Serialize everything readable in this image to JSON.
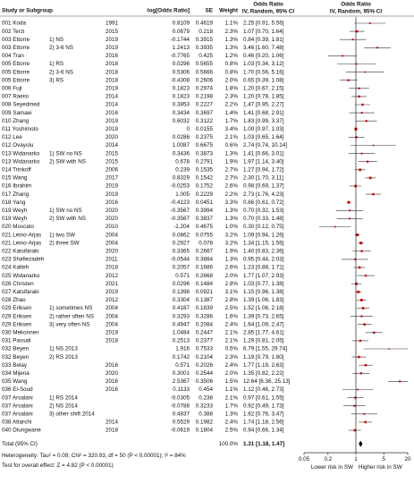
{
  "chart_data": {
    "type": "forest",
    "headers": {
      "study": "Study or Subgroup",
      "logor": "log[Odds Ratio]",
      "se": "SE",
      "weight": "Weight",
      "or_title": "Odds Ratio",
      "or_sub": "IV, Random, 95% CI",
      "plot_title": "Odds Ratio",
      "plot_sub": "IV, Random, 95% CI"
    },
    "rows": [
      {
        "study": "001 Koda",
        "year": 1991,
        "logor": 0.8109,
        "se": 0.4619,
        "weight": "1.1%",
        "ci": "2.25 [0.91, 5.56]",
        "or": 2.25,
        "lo": 0.91,
        "hi": 5.56
      },
      {
        "study": "002 Terzi",
        "year": 2015,
        "logor": 0.0679,
        "se": 0.218,
        "weight": "2.3%",
        "ci": "1.07 [0.70, 1.64]",
        "or": 1.07,
        "lo": 0.7,
        "hi": 1.64
      },
      {
        "study": "003 Ettorre",
        "subgroup": "1) NS",
        "year": 2019,
        "logor": -0.1744,
        "se": 0.3915,
        "weight": "1.3%",
        "ci": "0.84 [0.39, 1.81]",
        "or": 0.84,
        "lo": 0.39,
        "hi": 1.81
      },
      {
        "study": "003 Ettorre",
        "subgroup": "2) 3-6 NS",
        "year": 2019,
        "logor": 1.2413,
        "se": 0.3935,
        "weight": "1.3%",
        "ci": "3.46 [1.60, 7.48]",
        "or": 3.46,
        "lo": 1.6,
        "hi": 7.48
      },
      {
        "study": "004 Tran",
        "year": 2016,
        "logor": -0.7765,
        "se": 0.425,
        "weight": "1.2%",
        "ci": "0.46 [0.20, 1.06]",
        "or": 0.46,
        "lo": 0.2,
        "hi": 1.06
      },
      {
        "study": "005 Ettorre",
        "subgroup": "1) RS",
        "year": 2018,
        "logor": 0.0296,
        "se": 0.5655,
        "weight": "0.8%",
        "ci": "1.03 [0.34, 3.12]",
        "or": 1.03,
        "lo": 0.34,
        "hi": 3.12
      },
      {
        "study": "005 Ettorre",
        "subgroup": "2) 3-6 NS",
        "year": 2018,
        "logor": 0.5306,
        "se": 0.5666,
        "weight": "0.8%",
        "ci": "1.70 [0.56, 5.16]",
        "or": 1.7,
        "lo": 0.56,
        "hi": 5.16
      },
      {
        "study": "005 Ettorre",
        "subgroup": "3) RS",
        "year": 2018,
        "logor": -0.4308,
        "se": 0.2606,
        "weight": "2.0%",
        "ci": "0.65 [0.39, 1.08]",
        "or": 0.65,
        "lo": 0.39,
        "hi": 1.08
      },
      {
        "study": "006 Fuji",
        "year": 2019,
        "logor": 0.1823,
        "se": 0.2974,
        "weight": "1.8%",
        "ci": "1.20 [0.67, 2.15]",
        "or": 1.2,
        "lo": 0.67,
        "hi": 2.15
      },
      {
        "study": "007 Raeisi",
        "year": 2014,
        "logor": 0.1823,
        "se": 0.2198,
        "weight": "2.3%",
        "ci": "1.20 [0.78, 1.85]",
        "or": 1.2,
        "lo": 0.78,
        "hi": 1.85
      },
      {
        "study": "008 Seyedmed",
        "year": 2014,
        "logor": 0.3853,
        "se": 0.2227,
        "weight": "2.2%",
        "ci": "1.47 [0.95, 2.27]",
        "or": 1.47,
        "lo": 0.95,
        "hi": 2.27
      },
      {
        "study": "009 Samaei",
        "year": 2016,
        "logor": 0.3434,
        "se": 0.3697,
        "weight": "1.4%",
        "ci": "1.41 [0.68, 2.91]",
        "or": 1.41,
        "lo": 0.68,
        "hi": 2.91
      },
      {
        "study": "010 Zhang",
        "year": 2019,
        "logor": 0.6032,
        "se": 0.3122,
        "weight": "1.7%",
        "ci": "1.83 [0.99, 3.37]",
        "or": 1.83,
        "lo": 0.99,
        "hi": 3.37
      },
      {
        "study": "011 Yoshimoto",
        "year": 2019,
        "logor": 0,
        "se": 0.0155,
        "weight": "3.4%",
        "ci": "1.00 [0.97, 1.03]",
        "or": 1,
        "lo": 0.97,
        "hi": 1.03
      },
      {
        "study": "012 Lee",
        "year": 2020,
        "logor": 0.0286,
        "se": 0.2375,
        "weight": "2.1%",
        "ci": "1.03 [0.65, 1.64]",
        "or": 1.03,
        "lo": 0.65,
        "hi": 1.64
      },
      {
        "study": "012 Ovayolu",
        "year": 2014,
        "logor": 1.0087,
        "se": 0.6675,
        "weight": "0.6%",
        "ci": "2.74 [0.74, 10.14]",
        "or": 2.74,
        "lo": 0.74,
        "hi": 10.14
      },
      {
        "study": "013 Widanarko",
        "subgroup": "1) SW no NS",
        "year": 2015,
        "logor": 0.3436,
        "se": 0.3873,
        "weight": "1.3%",
        "ci": "1.41 [0.66, 3.01]",
        "or": 1.41,
        "lo": 0.66,
        "hi": 3.01
      },
      {
        "study": "013 Widanarko",
        "subgroup": "2) SW with NS",
        "year": 2015,
        "logor": 0.678,
        "se": 0.2791,
        "weight": "1.9%",
        "ci": "1.97 [1.14, 3.40]",
        "or": 1.97,
        "lo": 1.14,
        "hi": 3.4
      },
      {
        "study": "014 Trinkoff",
        "year": 2006,
        "logor": 0.239,
        "se": 0.1535,
        "weight": "2.7%",
        "ci": "1.27 [0.94, 1.72]",
        "or": 1.27,
        "lo": 0.94,
        "hi": 1.72
      },
      {
        "study": "015 Wang",
        "year": 2017,
        "logor": 0.8329,
        "se": 0.1542,
        "weight": "2.7%",
        "ci": "2.30 [1.70, 3.11]",
        "or": 2.3,
        "lo": 1.7,
        "hi": 3.11
      },
      {
        "study": "016 Ibrahim",
        "year": 2019,
        "logor": -0.0253,
        "se": 0.1752,
        "weight": "2.6%",
        "ci": "0.98 [0.69, 1.37]",
        "or": 0.98,
        "lo": 0.69,
        "hi": 1.37
      },
      {
        "study": "017 Zhang",
        "year": 2019,
        "logor": 1.005,
        "se": 0.2229,
        "weight": "2.2%",
        "ci": "2.73 [1.76, 4.23]",
        "or": 2.73,
        "lo": 1.76,
        "hi": 4.23
      },
      {
        "study": "018 Yang",
        "year": 2016,
        "logor": -0.4123,
        "se": 0.0451,
        "weight": "3.3%",
        "ci": "0.66 [0.61, 0.72]",
        "or": 0.66,
        "lo": 0.61,
        "hi": 0.72
      },
      {
        "study": "019 Weyh",
        "subgroup": "1) SW no NS",
        "year": 2020,
        "logor": -0.3567,
        "se": 0.3994,
        "weight": "1.3%",
        "ci": "0.70 [0.32, 1.53]",
        "or": 0.7,
        "lo": 0.32,
        "hi": 1.53
      },
      {
        "study": "019 Weyh",
        "subgroup": "2) SW with NS",
        "year": 2020,
        "logor": -0.3567,
        "se": 0.3837,
        "weight": "1.3%",
        "ci": "0.70 [0.33, 1.48]",
        "or": 0.7,
        "lo": 0.33,
        "hi": 1.48
      },
      {
        "study": "020 Moscato",
        "year": 2010,
        "logor": -1.204,
        "se": 0.4675,
        "weight": "1.0%",
        "ci": "0.30 [0.12, 0.75]",
        "or": 0.3,
        "lo": 0.12,
        "hi": 0.75
      },
      {
        "study": "021 Leino-Arjas",
        "subgroup": "1) two SW",
        "year": 2004,
        "logor": 0.0862,
        "se": 0.0755,
        "weight": "3.2%",
        "ci": "1.09 [0.94, 1.26]",
        "or": 1.09,
        "lo": 0.94,
        "hi": 1.26
      },
      {
        "study": "021 Leino-Arjas",
        "subgroup": "2) three SW",
        "year": 2004,
        "logor": 0.2927,
        "se": 0.078,
        "weight": "3.2%",
        "ci": "1.34 [1.15, 1.56]",
        "or": 1.34,
        "lo": 1.15,
        "hi": 1.56
      },
      {
        "study": "022 Katsifaraki",
        "year": 2020,
        "logor": 0.3365,
        "se": 0.2667,
        "weight": "1.9%",
        "ci": "1.40 [0.83, 2.36]",
        "or": 1.4,
        "lo": 0.83,
        "hi": 2.36
      },
      {
        "study": "023 Shafiezadeh",
        "year": 2011,
        "logor": -0.0544,
        "se": 0.3884,
        "weight": "1.3%",
        "ci": "0.95 [0.44, 2.03]",
        "or": 0.95,
        "lo": 0.44,
        "hi": 2.03
      },
      {
        "study": "024 Kalteh",
        "year": 2018,
        "logor": 0.2057,
        "se": 0.1686,
        "weight": "2.6%",
        "ci": "1.23 [0.88, 1.71]",
        "or": 1.23,
        "lo": 0.88,
        "hi": 1.71
      },
      {
        "study": "025 Widanarko",
        "year": 2012,
        "logor": 0.571,
        "se": 0.2668,
        "weight": "2.0%",
        "ci": "1.77 [1.07, 2.93]",
        "or": 1.77,
        "lo": 1.07,
        "hi": 2.93
      },
      {
        "study": "026 Christen",
        "year": 2021,
        "logor": 0.0296,
        "se": 0.1484,
        "weight": "2.8%",
        "ci": "1.03 [0.77, 1.38]",
        "or": 1.03,
        "lo": 0.77,
        "hi": 1.38
      },
      {
        "study": "027 Katsifaraki",
        "year": 2019,
        "logor": 0.1398,
        "se": 0.0921,
        "weight": "3.1%",
        "ci": "1.15 [0.96, 1.38]",
        "or": 1.15,
        "lo": 0.96,
        "hi": 1.38
      },
      {
        "study": "028 Zhao",
        "year": 2012,
        "logor": 0.3304,
        "se": 0.1387,
        "weight": "2.8%",
        "ci": "1.39 [1.06, 1.83]",
        "or": 1.39,
        "lo": 1.06,
        "hi": 1.83
      },
      {
        "study": "029 Eriksen",
        "subgroup": "1) sometimes NS",
        "year": 2004,
        "logor": 0.4187,
        "se": 0.1839,
        "weight": "2.5%",
        "ci": "1.52 [1.06, 2.18]",
        "or": 1.52,
        "lo": 1.06,
        "hi": 2.18
      },
      {
        "study": "029 Eriksen",
        "subgroup": "2) rather often NS",
        "year": 2004,
        "logor": 0.3293,
        "se": 0.3286,
        "weight": "1.6%",
        "ci": "1.39 [0.73, 2.65]",
        "or": 1.39,
        "lo": 0.73,
        "hi": 2.65
      },
      {
        "study": "029 Eriksen",
        "subgroup": "3) very often NS",
        "year": 2004,
        "logor": 0.4947,
        "se": 0.2084,
        "weight": "2.4%",
        "ci": "1.64 [1.09, 2.47]",
        "or": 1.64,
        "lo": 1.09,
        "hi": 2.47
      },
      {
        "study": "030 Mekonnen",
        "year": 2019,
        "logor": 1.0484,
        "se": 0.2447,
        "weight": "2.1%",
        "ci": "2.85 [1.77, 4.61]",
        "or": 2.85,
        "lo": 1.77,
        "hi": 4.61
      },
      {
        "study": "031 Passali",
        "year": 2018,
        "logor": 0.2513,
        "se": 0.2377,
        "weight": "2.1%",
        "ci": "1.29 [0.81, 2.05]",
        "or": 1.29,
        "lo": 0.81,
        "hi": 2.05
      },
      {
        "study": "032 Beyen",
        "subgroup": "1) NS 2013",
        "year": null,
        "logor": 1.916,
        "se": 0.7533,
        "weight": "0.5%",
        "ci": "6.79 [1.55, 29.74]",
        "or": 6.79,
        "lo": 1.55,
        "hi": 29.74
      },
      {
        "study": "032 Beyen",
        "subgroup": "2) RS 2013",
        "year": null,
        "logor": 0.1742,
        "se": 0.2104,
        "weight": "2.3%",
        "ci": "1.19 [0.79, 1.80]",
        "or": 1.19,
        "lo": 0.79,
        "hi": 1.8
      },
      {
        "study": "033 Belay",
        "year": 2016,
        "logor": 0.571,
        "se": 0.2026,
        "weight": "2.4%",
        "ci": "1.77 [1.19, 2.63]",
        "or": 1.77,
        "lo": 1.19,
        "hi": 2.63
      },
      {
        "study": "034 Mijena",
        "year": 2020,
        "logor": 0.3001,
        "se": 0.2544,
        "weight": "2.0%",
        "ci": "1.35 [0.82, 2.22]",
        "or": 1.35,
        "lo": 0.82,
        "hi": 2.22
      },
      {
        "study": "035 Wang",
        "year": 2016,
        "logor": 2.5367,
        "se": 0.3506,
        "weight": "1.5%",
        "ci": "12.64 [6.36, 25.13]",
        "or": 12.64,
        "lo": 6.36,
        "hi": 25.13
      },
      {
        "study": "036 El-Soud",
        "year": 2016,
        "logor": 0.1133,
        "se": 0.454,
        "weight": "1.1%",
        "ci": "1.12 [0.46, 2.73]",
        "or": 1.12,
        "lo": 0.46,
        "hi": 2.73
      },
      {
        "study": "037 Arsalani",
        "subgroup": "1) RS 2014",
        "year": null,
        "logor": -0.0305,
        "se": 0.238,
        "weight": "2.1%",
        "ci": "0.97 [0.61, 1.55]",
        "or": 0.97,
        "lo": 0.61,
        "hi": 1.55
      },
      {
        "study": "037 Arsalani",
        "subgroup": "2) NS 2014",
        "year": null,
        "logor": -0.0788,
        "se": 0.3233,
        "weight": "1.7%",
        "ci": "0.92 [0.49, 1.73]",
        "or": 0.92,
        "lo": 0.49,
        "hi": 1.73
      },
      {
        "study": "037 Arsalani",
        "subgroup": "3) other shift 2014",
        "year": null,
        "logor": 0.4837,
        "se": 0.388,
        "weight": "1.3%",
        "ci": "1.62 [0.76, 3.47]",
        "or": 1.62,
        "lo": 0.76,
        "hi": 3.47
      },
      {
        "study": "038 Attarchi",
        "year": 2014,
        "logor": 0.5529,
        "se": 0.1982,
        "weight": "2.4%",
        "ci": "1.74 [1.18, 2.56]",
        "or": 1.74,
        "lo": 1.18,
        "hi": 2.56
      },
      {
        "study": "040 Dlungwane",
        "year": 2018,
        "logor": -0.0619,
        "se": 0.1804,
        "weight": "2.5%",
        "ci": "0.94 [0.66, 1.34]",
        "or": 0.94,
        "lo": 0.66,
        "hi": 1.34
      }
    ],
    "total": {
      "label": "Total (95% CI)",
      "weight": "100.0%",
      "ci": "1.31 [1.18, 1.47]",
      "or": 1.31,
      "lo": 1.18,
      "hi": 1.47
    },
    "heterogeneity": "Heterogeneity: Tau² = 0.09; Chi² = 320.93, df = 50 (P < 0.00001); I² = 84%",
    "overall_test": "Test for overall effect: Z = 4.82 (P < 0.00001)",
    "xlim": [
      0.05,
      20
    ],
    "xticks": [
      0.05,
      0.2,
      1,
      5,
      20
    ],
    "log_scale": true,
    "xlabel_left": "Lower risk in SW",
    "xlabel_right": "Higher risk in SW",
    "marker_color": "#cc0000"
  }
}
